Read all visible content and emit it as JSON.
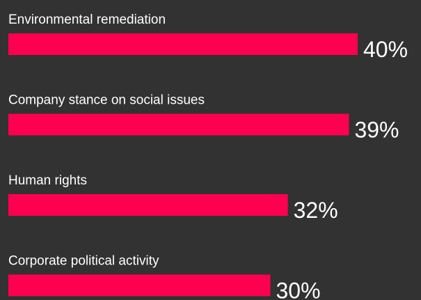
{
  "chart_data": {
    "type": "bar",
    "orientation": "horizontal",
    "color": "#ff0050",
    "categories": [
      "Environmental remediation",
      "Company stance on social issues",
      "Human rights",
      "Corporate political activity"
    ],
    "values": [
      40,
      39,
      32,
      30
    ],
    "value_labels": [
      "40%",
      "39%",
      "32%",
      "30%"
    ]
  }
}
